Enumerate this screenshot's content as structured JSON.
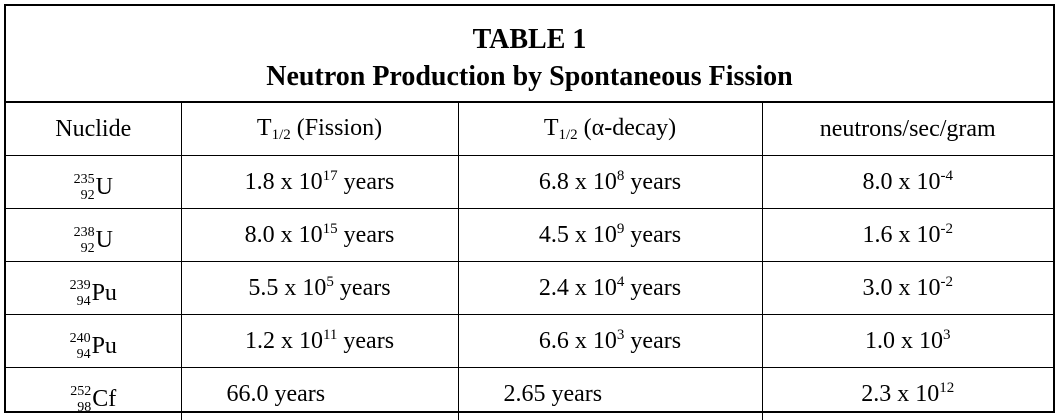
{
  "table": {
    "title": "TABLE 1",
    "subtitle": "Neutron Production by Spontaneous Fission",
    "headers": {
      "nuclide": "Nuclide",
      "fission_T": "T",
      "fission_sub": "1/2",
      "fission_rest": " (Fission)",
      "alpha_T": "T",
      "alpha_sub": "1/2",
      "alpha_rest": " (α-decay)",
      "neutrons": "neutrons/sec/gram"
    },
    "rows": [
      {
        "mass": "235",
        "z": "92",
        "sym": "U",
        "fission_base": "1.8 x 10",
        "fission_exp": "17",
        "fission_unit": " years",
        "alpha_base": "6.8 x 10",
        "alpha_exp": "8",
        "alpha_unit": " years",
        "n_base": "8.0 x 10",
        "n_exp": "-4"
      },
      {
        "mass": "238",
        "z": "92",
        "sym": "U",
        "fission_base": "8.0 x 10",
        "fission_exp": "15",
        "fission_unit": " years",
        "alpha_base": "4.5 x 10",
        "alpha_exp": "9",
        "alpha_unit": " years",
        "n_base": "1.6 x 10",
        "n_exp": "-2"
      },
      {
        "mass": "239",
        "z": "94",
        "sym": "Pu",
        "fission_base": "5.5 x 10",
        "fission_exp": "5",
        "fission_unit": " years",
        "alpha_base": "2.4 x 10",
        "alpha_exp": "4",
        "alpha_unit": " years",
        "n_base": "3.0 x 10",
        "n_exp": "-2"
      },
      {
        "mass": "240",
        "z": "94",
        "sym": "Pu",
        "fission_base": "1.2 x 10",
        "fission_exp": "11",
        "fission_unit": " years",
        "alpha_base": "6.6 x 10",
        "alpha_exp": "3",
        "alpha_unit": " years",
        "n_base": "1.0 x 10",
        "n_exp": "3"
      },
      {
        "mass": "252",
        "z": "98",
        "sym": "Cf",
        "fission_text": "66.0 years",
        "alpha_text": "2.65 years",
        "n_base": "2.3 x 10",
        "n_exp": "12"
      }
    ]
  }
}
